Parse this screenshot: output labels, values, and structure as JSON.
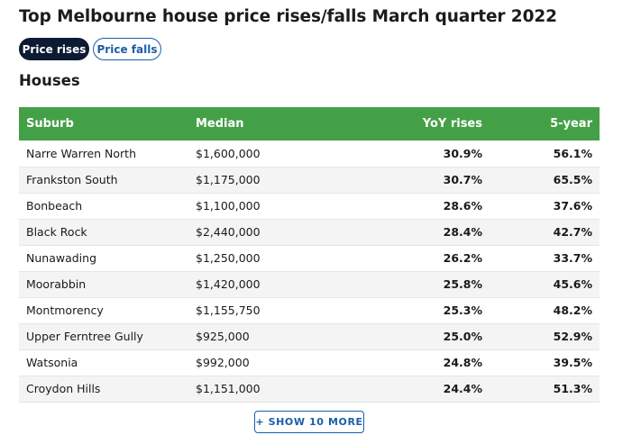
{
  "title": "Top Melbourne house price rises/falls March quarter 2022",
  "toggles": {
    "rises_label": "Price rises",
    "falls_label": "Price falls",
    "active": "rises"
  },
  "section_heading": "Houses",
  "table": {
    "headers": {
      "suburb": "Suburb",
      "median": "Median",
      "yoy": "YoY rises",
      "five_year": "5-year"
    },
    "rows": [
      {
        "suburb": "Narre Warren North",
        "median": "$1,600,000",
        "yoy": "30.9%",
        "five_year": "56.1%"
      },
      {
        "suburb": "Frankston South",
        "median": "$1,175,000",
        "yoy": "30.7%",
        "five_year": "65.5%"
      },
      {
        "suburb": "Bonbeach",
        "median": "$1,100,000",
        "yoy": "28.6%",
        "five_year": "37.6%"
      },
      {
        "suburb": "Black Rock",
        "median": "$2,440,000",
        "yoy": "28.4%",
        "five_year": "42.7%"
      },
      {
        "suburb": "Nunawading",
        "median": "$1,250,000",
        "yoy": "26.2%",
        "five_year": "33.7%"
      },
      {
        "suburb": "Moorabbin",
        "median": "$1,420,000",
        "yoy": "25.8%",
        "five_year": "45.6%"
      },
      {
        "suburb": "Montmorency",
        "median": "$1,155,750",
        "yoy": "25.3%",
        "five_year": "48.2%"
      },
      {
        "suburb": "Upper Ferntree Gully",
        "median": "$925,000",
        "yoy": "25.0%",
        "five_year": "52.9%"
      },
      {
        "suburb": "Watsonia",
        "median": "$992,000",
        "yoy": "24.8%",
        "five_year": "39.5%"
      },
      {
        "suburb": "Croydon Hills",
        "median": "$1,151,000",
        "yoy": "24.4%",
        "five_year": "51.3%"
      }
    ]
  },
  "show_more_label": "+ SHOW 10 MORE",
  "colors": {
    "header_green": "#44a047",
    "active_toggle_bg": "#0d1a33",
    "link_blue": "#1a5fa8"
  }
}
